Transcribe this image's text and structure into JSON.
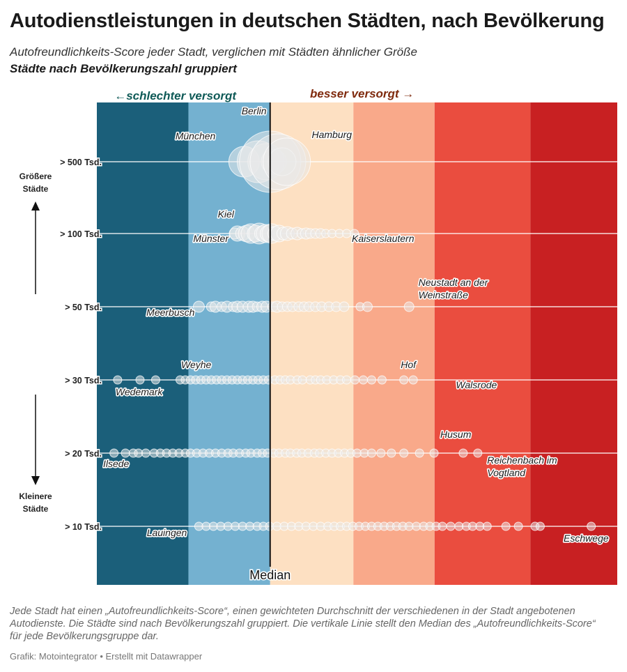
{
  "title": "Autodienstleistungen in deutschen Städten, nach Bevölkerung",
  "subtitle": "Autofreundlichkeits-Score jeder Stadt, verglichen mit Städten ähnlicher Größe",
  "subtitle2": "Städte nach Bevölkerungszahl gruppiert",
  "notes": "Jede Stadt hat einen „Autofreundlichkeits-Score“, einen gewichteten Durchschnitt der verschiedenen in der Stadt angebotenen Autodienste. Die Städte sind nach Bevölkerungszahl gruppiert. Die vertikale Linie stellt den Median des „Autofreundlichkeits-Score“ für jede Bevölkerungsgruppe dar.",
  "credit": "Grafik: Motointegrator • Erstellt mit Datawrapper",
  "chart_data": {
    "type": "scatter",
    "colors": {
      "bands": [
        "#1b5f7a",
        "#74b1d0",
        "#fde0c2",
        "#f9a98a",
        "#ea4d3f",
        "#c82022"
      ],
      "worse": "#0f5a57",
      "better": "#7f2a0d",
      "point": "#e9e9e9"
    },
    "band_edges": [
      0,
      0.176,
      0.333,
      0.493,
      0.649,
      0.833,
      1
    ],
    "median_x": 0.333,
    "worse_label": "←schlechter versorgt",
    "better_label": "besser versorgt →",
    "median_label": "Median",
    "y_side_labels": {
      "top": "Größere Städte",
      "bottom": "Kleinere Städte"
    },
    "categories": [
      "> 500 Tsd.",
      "> 100 Tsd.",
      "> 50 Tsd.",
      "> 30 Tsd.",
      "> 20 Tsd.",
      "> 10 Tsd."
    ],
    "series": [
      {
        "category": "> 500 Tsd.",
        "points": [
          [
            0.283,
            22
          ],
          [
            0.31,
            30
          ],
          [
            0.325,
            26
          ],
          [
            0.333,
            44
          ],
          [
            0.34,
            18
          ],
          [
            0.348,
            40
          ],
          [
            0.356,
            20
          ],
          [
            0.365,
            34
          ]
        ]
      },
      {
        "category": "> 100 Tsd.",
        "points": [
          [
            0.265,
            8
          ],
          [
            0.27,
            11
          ],
          [
            0.28,
            10
          ],
          [
            0.288,
            12
          ],
          [
            0.296,
            14
          ],
          [
            0.305,
            12
          ],
          [
            0.312,
            15
          ],
          [
            0.318,
            11
          ],
          [
            0.324,
            13
          ],
          [
            0.33,
            12
          ],
          [
            0.336,
            14
          ],
          [
            0.342,
            10
          ],
          [
            0.35,
            12
          ],
          [
            0.358,
            9
          ],
          [
            0.366,
            10
          ],
          [
            0.375,
            8
          ],
          [
            0.385,
            9
          ],
          [
            0.394,
            7
          ],
          [
            0.402,
            8
          ],
          [
            0.41,
            7
          ],
          [
            0.42,
            7
          ],
          [
            0.43,
            7
          ],
          [
            0.44,
            6
          ],
          [
            0.452,
            6
          ],
          [
            0.466,
            6
          ],
          [
            0.48,
            6
          ],
          [
            0.495,
            6
          ]
        ]
      },
      {
        "category": "> 50 Tsd.",
        "points": [
          [
            0.196,
            8
          ],
          [
            0.22,
            7
          ],
          [
            0.228,
            8
          ],
          [
            0.24,
            7
          ],
          [
            0.25,
            8
          ],
          [
            0.262,
            7
          ],
          [
            0.27,
            8
          ],
          [
            0.28,
            8
          ],
          [
            0.292,
            8
          ],
          [
            0.3,
            8
          ],
          [
            0.308,
            7
          ],
          [
            0.318,
            8
          ],
          [
            0.326,
            8
          ],
          [
            0.338,
            7
          ],
          [
            0.346,
            8
          ],
          [
            0.356,
            7
          ],
          [
            0.366,
            7
          ],
          [
            0.376,
            7
          ],
          [
            0.388,
            7
          ],
          [
            0.398,
            7
          ],
          [
            0.408,
            7
          ],
          [
            0.42,
            7
          ],
          [
            0.432,
            7
          ],
          [
            0.446,
            7
          ],
          [
            0.46,
            7
          ],
          [
            0.475,
            7
          ],
          [
            0.506,
            6
          ],
          [
            0.52,
            7
          ],
          [
            0.6,
            7
          ]
        ]
      },
      {
        "category": "> 30 Tsd.",
        "points": [
          [
            0.04,
            6
          ],
          [
            0.083,
            6
          ],
          [
            0.113,
            6
          ],
          [
            0.16,
            6
          ],
          [
            0.17,
            6
          ],
          [
            0.18,
            6
          ],
          [
            0.19,
            6
          ],
          [
            0.2,
            6
          ],
          [
            0.21,
            6
          ],
          [
            0.22,
            6
          ],
          [
            0.23,
            6
          ],
          [
            0.24,
            6
          ],
          [
            0.25,
            6
          ],
          [
            0.26,
            6
          ],
          [
            0.27,
            6
          ],
          [
            0.28,
            6
          ],
          [
            0.29,
            6
          ],
          [
            0.3,
            6
          ],
          [
            0.31,
            6
          ],
          [
            0.32,
            6
          ],
          [
            0.33,
            6
          ],
          [
            0.342,
            6
          ],
          [
            0.352,
            6
          ],
          [
            0.362,
            6
          ],
          [
            0.372,
            6
          ],
          [
            0.385,
            6
          ],
          [
            0.395,
            6
          ],
          [
            0.41,
            6
          ],
          [
            0.42,
            6
          ],
          [
            0.43,
            6
          ],
          [
            0.442,
            6
          ],
          [
            0.455,
            6
          ],
          [
            0.468,
            6
          ],
          [
            0.48,
            6
          ],
          [
            0.496,
            6
          ],
          [
            0.512,
            6
          ],
          [
            0.528,
            6
          ],
          [
            0.548,
            6
          ],
          [
            0.59,
            6
          ],
          [
            0.608,
            6
          ]
        ]
      },
      {
        "category": "> 20 Tsd.",
        "points": [
          [
            0.033,
            6
          ],
          [
            0.055,
            6
          ],
          [
            0.07,
            6
          ],
          [
            0.08,
            6
          ],
          [
            0.094,
            6
          ],
          [
            0.11,
            6
          ],
          [
            0.122,
            6
          ],
          [
            0.134,
            6
          ],
          [
            0.146,
            6
          ],
          [
            0.158,
            6
          ],
          [
            0.17,
            6
          ],
          [
            0.18,
            6
          ],
          [
            0.192,
            6
          ],
          [
            0.204,
            6
          ],
          [
            0.216,
            6
          ],
          [
            0.228,
            6
          ],
          [
            0.24,
            6
          ],
          [
            0.252,
            6
          ],
          [
            0.262,
            6
          ],
          [
            0.274,
            6
          ],
          [
            0.286,
            6
          ],
          [
            0.296,
            6
          ],
          [
            0.308,
            6
          ],
          [
            0.318,
            6
          ],
          [
            0.328,
            6
          ],
          [
            0.34,
            6
          ],
          [
            0.35,
            6
          ],
          [
            0.362,
            6
          ],
          [
            0.372,
            6
          ],
          [
            0.384,
            6
          ],
          [
            0.394,
            6
          ],
          [
            0.406,
            6
          ],
          [
            0.418,
            6
          ],
          [
            0.428,
            6
          ],
          [
            0.44,
            6
          ],
          [
            0.452,
            6
          ],
          [
            0.464,
            6
          ],
          [
            0.476,
            6
          ],
          [
            0.488,
            6
          ],
          [
            0.5,
            6
          ],
          [
            0.514,
            6
          ],
          [
            0.528,
            6
          ],
          [
            0.546,
            6
          ],
          [
            0.566,
            6
          ],
          [
            0.59,
            6
          ],
          [
            0.62,
            6
          ],
          [
            0.648,
            6
          ],
          [
            0.704,
            6
          ],
          [
            0.732,
            6
          ]
        ]
      },
      {
        "category": "> 10 Tsd.",
        "points": [
          [
            0.196,
            6
          ],
          [
            0.21,
            6
          ],
          [
            0.224,
            6
          ],
          [
            0.238,
            6
          ],
          [
            0.252,
            6
          ],
          [
            0.266,
            6
          ],
          [
            0.28,
            6
          ],
          [
            0.294,
            6
          ],
          [
            0.308,
            6
          ],
          [
            0.32,
            6
          ],
          [
            0.332,
            6
          ],
          [
            0.346,
            6
          ],
          [
            0.36,
            6
          ],
          [
            0.374,
            6
          ],
          [
            0.388,
            6
          ],
          [
            0.402,
            6
          ],
          [
            0.416,
            6
          ],
          [
            0.43,
            6
          ],
          [
            0.444,
            6
          ],
          [
            0.456,
            6
          ],
          [
            0.468,
            6
          ],
          [
            0.48,
            6
          ],
          [
            0.492,
            6
          ],
          [
            0.504,
            6
          ],
          [
            0.516,
            6
          ],
          [
            0.528,
            6
          ],
          [
            0.54,
            6
          ],
          [
            0.552,
            6
          ],
          [
            0.564,
            6
          ],
          [
            0.576,
            6
          ],
          [
            0.588,
            6
          ],
          [
            0.6,
            6
          ],
          [
            0.614,
            6
          ],
          [
            0.628,
            6
          ],
          [
            0.64,
            6
          ],
          [
            0.652,
            6
          ],
          [
            0.664,
            6
          ],
          [
            0.68,
            6
          ],
          [
            0.696,
            6
          ],
          [
            0.71,
            6
          ],
          [
            0.722,
            6
          ],
          [
            0.736,
            6
          ],
          [
            0.75,
            6
          ],
          [
            0.786,
            6
          ],
          [
            0.81,
            6
          ],
          [
            0.842,
            6
          ],
          [
            0.852,
            6
          ],
          [
            0.95,
            6
          ]
        ]
      }
    ],
    "annotations": [
      {
        "text": "Berlin",
        "x": 0.302,
        "row": 0,
        "dy": -68,
        "anchor": "middle"
      },
      {
        "text": "München",
        "x": 0.228,
        "row": 0,
        "dy": -32,
        "anchor": "end"
      },
      {
        "text": "Hamburg",
        "x": 0.413,
        "row": 0,
        "dy": -34,
        "anchor": "start"
      },
      {
        "text": "Kiel",
        "x": 0.248,
        "row": 1,
        "dy": -23,
        "anchor": "middle"
      },
      {
        "text": "Münster",
        "x": 0.253,
        "row": 1,
        "dy": 12,
        "anchor": "end"
      },
      {
        "text": "Kaiserslautern",
        "x": 0.49,
        "row": 1,
        "dy": 12,
        "anchor": "start"
      },
      {
        "text": "Neustadt an der",
        "x": 0.618,
        "row": 2,
        "dy": -30,
        "anchor": "start"
      },
      {
        "text": "Weinstraße",
        "x": 0.618,
        "row": 2,
        "dy": -12,
        "anchor": "start"
      },
      {
        "text": "Meerbusch",
        "x": 0.188,
        "row": 2,
        "dy": 13,
        "anchor": "end"
      },
      {
        "text": "Weyhe",
        "x": 0.162,
        "row": 3,
        "dy": -17,
        "anchor": "start"
      },
      {
        "text": "Wedemark",
        "x": 0.036,
        "row": 3,
        "dy": 22,
        "anchor": "start"
      },
      {
        "text": "Hof",
        "x": 0.584,
        "row": 3,
        "dy": -17,
        "anchor": "start"
      },
      {
        "text": "Walsrode",
        "x": 0.69,
        "row": 3,
        "dy": 12,
        "anchor": "start"
      },
      {
        "text": "Husum",
        "x": 0.66,
        "row": 4,
        "dy": -22,
        "anchor": "start"
      },
      {
        "text": "Ilsede",
        "x": 0.012,
        "row": 4,
        "dy": 20,
        "anchor": "start"
      },
      {
        "text": "Reichenbach im",
        "x": 0.75,
        "row": 4,
        "dy": 15,
        "anchor": "start"
      },
      {
        "text": "Vogtland",
        "x": 0.75,
        "row": 4,
        "dy": 33,
        "anchor": "start"
      },
      {
        "text": "Lauingen",
        "x": 0.096,
        "row": 5,
        "dy": 14,
        "anchor": "start"
      },
      {
        "text": "Eschwege",
        "x": 0.897,
        "row": 5,
        "dy": 22,
        "anchor": "start"
      }
    ]
  }
}
